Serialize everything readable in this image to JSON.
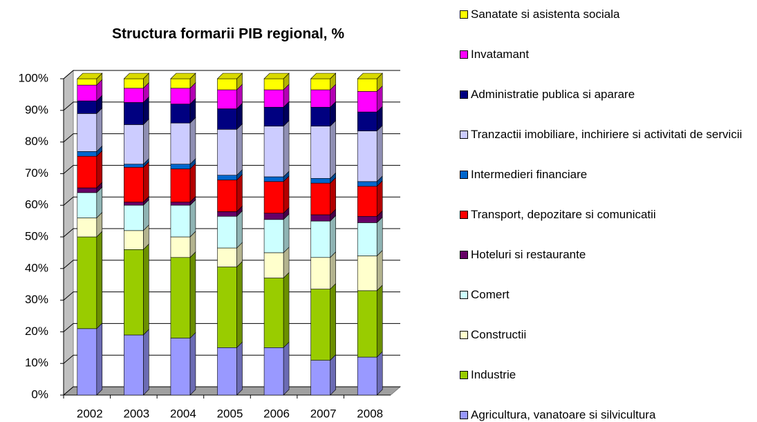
{
  "chart_data": {
    "type": "bar",
    "stacked": true,
    "title": "Structura formarii PIB regional, %",
    "categories": [
      "2002",
      "2003",
      "2004",
      "2005",
      "2006",
      "2007",
      "2008"
    ],
    "ylim": [
      0,
      100
    ],
    "yticks": [
      {
        "value": 0,
        "label": "0%"
      },
      {
        "value": 10,
        "label": "10%"
      },
      {
        "value": 20,
        "label": "20%"
      },
      {
        "value": 30,
        "label": "30%"
      },
      {
        "value": 40,
        "label": "40%"
      },
      {
        "value": 50,
        "label": "50%"
      },
      {
        "value": 60,
        "label": "60%"
      },
      {
        "value": 70,
        "label": "70%"
      },
      {
        "value": 80,
        "label": "80%"
      },
      {
        "value": 90,
        "label": "90%"
      },
      {
        "value": 100,
        "label": "100%"
      }
    ],
    "grid": true,
    "series": [
      {
        "name": "Agricultura, vanatoare si silvicultura",
        "color": "#9999ff",
        "values": [
          21,
          19,
          18,
          15,
          15,
          11,
          12
        ]
      },
      {
        "name": "Industrie",
        "color": "#99cc00",
        "values": [
          29,
          27,
          25.5,
          25.5,
          22,
          22.5,
          21
        ]
      },
      {
        "name": "Constructii",
        "color": "#ffffcc",
        "values": [
          6,
          6,
          6.5,
          6,
          8,
          10,
          11
        ]
      },
      {
        "name": "Comert",
        "color": "#ccffff",
        "values": [
          8,
          8,
          10,
          10,
          10.5,
          11.5,
          10.5
        ]
      },
      {
        "name": "Hoteluri si restaurante",
        "color": "#660066",
        "values": [
          1.5,
          1,
          1,
          1.5,
          2,
          2,
          2
        ]
      },
      {
        "name": "Transport, depozitare si comunicatii",
        "color": "#ff0000",
        "values": [
          10,
          11,
          10.5,
          10,
          10,
          10,
          9.5
        ]
      },
      {
        "name": "Intermedieri financiare",
        "color": "#0066cc",
        "values": [
          1.5,
          1,
          1.5,
          1.5,
          1.5,
          1.5,
          1.5
        ]
      },
      {
        "name": "Tranzactii imobiliare, inchiriere si activitati de servicii",
        "color": "#ccccff",
        "values": [
          12,
          12.5,
          13,
          14.5,
          16,
          16.5,
          16
        ]
      },
      {
        "name": "Administratie publica si aparare",
        "color": "#000080",
        "values": [
          4,
          7,
          6,
          6.5,
          6,
          6,
          6
        ]
      },
      {
        "name": "Invatamant",
        "color": "#ff00ff",
        "values": [
          5,
          4.5,
          5,
          6,
          5.5,
          5.5,
          6.5
        ]
      },
      {
        "name": "Sanatate si asistenta sociala",
        "color": "#ffff00",
        "values": [
          2,
          3,
          3,
          3.5,
          3.5,
          3.5,
          4
        ]
      }
    ]
  }
}
